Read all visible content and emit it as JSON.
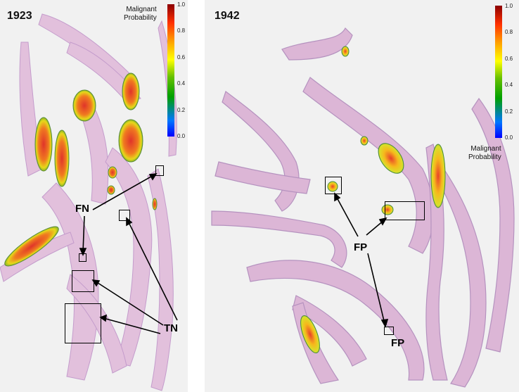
{
  "panels": {
    "left": {
      "slide_id": "1923"
    },
    "right": {
      "slide_id": "1942"
    }
  },
  "colorbar": {
    "title_line1": "Malignant",
    "title_line2": "Probability",
    "ticks": [
      "1.0",
      "0.8",
      "0.6",
      "0.4",
      "0.2",
      "0.0"
    ],
    "colors": [
      "#0000ff",
      "#00a000",
      "#ffff00",
      "#ffa000",
      "#ff3000",
      "#8b0000"
    ]
  },
  "annotations": {
    "false_negative": "FN",
    "true_negative": "TN",
    "false_positive": "FP"
  },
  "colors": {
    "tissue": "#dcb6d6",
    "tissue_dark": "#b592bf",
    "background": "#f1f1f1"
  }
}
